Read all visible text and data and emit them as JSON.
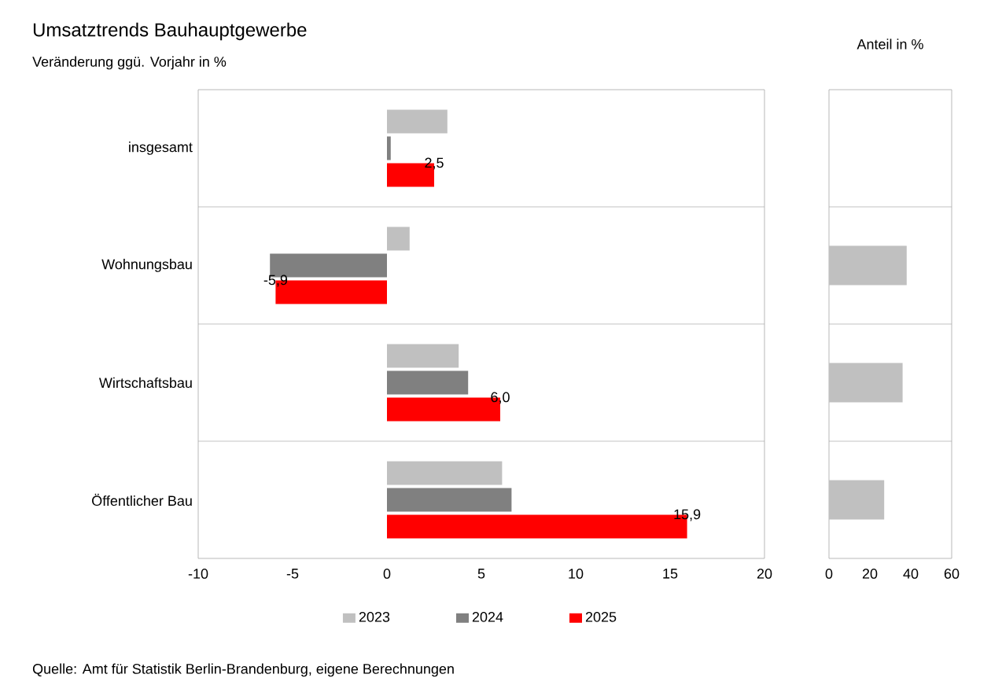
{
  "chart_data": [
    {
      "type": "bar",
      "orientation": "horizontal",
      "title": "Umsatztrends Bauhauptgewerbe",
      "subtitle": "Veränderung ggü. Vorjahr in %",
      "categories": [
        "insgesamt",
        "Wohnungsbau",
        "Wirtschaftsbau",
        "Öffentlicher Bau"
      ],
      "series": [
        {
          "name": "2023",
          "color": "#c0c0c0",
          "values": [
            3.2,
            1.2,
            3.8,
            6.1
          ]
        },
        {
          "name": "2024",
          "color": "#808080",
          "values": [
            0.2,
            -6.2,
            4.3,
            6.6
          ]
        },
        {
          "name": "2025",
          "color": "#ff0000",
          "values": [
            2.5,
            -5.9,
            6.0,
            15.9
          ],
          "value_labels": [
            "2,5",
            "-5,9",
            "6,0",
            "15,9"
          ]
        }
      ],
      "xlim": [
        -10,
        20
      ],
      "xticks": [
        -10,
        -5,
        0,
        5,
        10,
        15,
        20
      ],
      "grid": "y",
      "legend": "bottom",
      "annotations": [
        "Quelle: Amt für Statistik Berlin-Brandenburg, eigene Berechnungen"
      ]
    },
    {
      "type": "bar",
      "orientation": "horizontal",
      "title": "Anteil in %",
      "categories": [
        null,
        null,
        null,
        null
      ],
      "series": [
        {
          "color": "#c0c0c0",
          "values": [
            null,
            38,
            36,
            27
          ]
        }
      ],
      "xlim": [
        0,
        60
      ],
      "xticks": [
        0,
        20,
        40,
        60
      ],
      "grid": "y"
    }
  ]
}
